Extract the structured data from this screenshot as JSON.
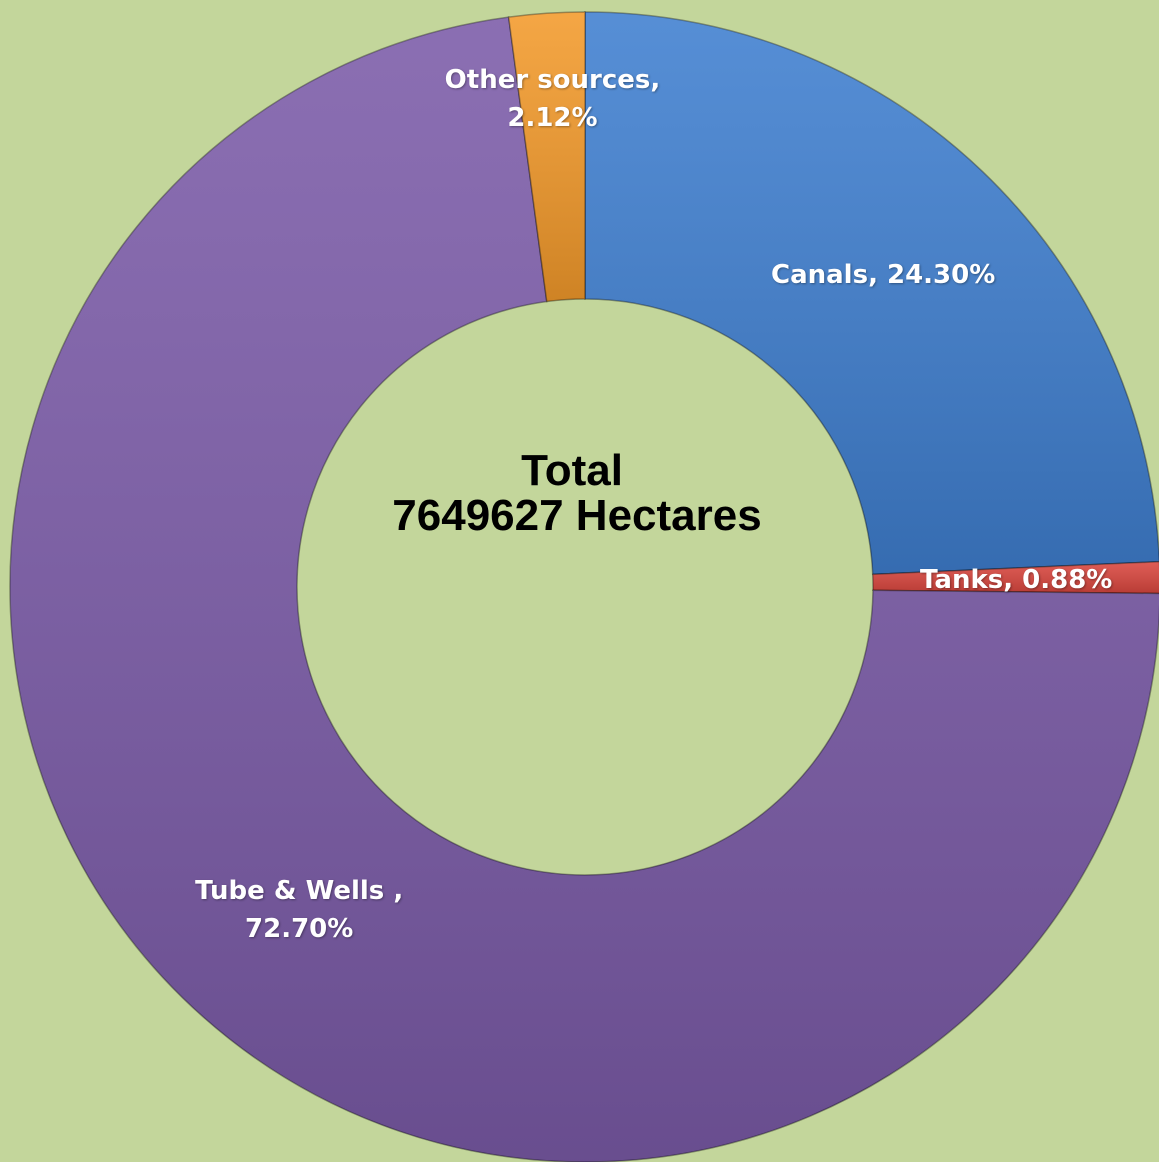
{
  "chart_data": {
    "type": "donut",
    "categories": [
      "Canals",
      "Tanks",
      "Tube & Wells",
      "Other sources"
    ],
    "values": [
      24.3,
      0.88,
      72.7,
      2.12
    ],
    "value_labels": [
      "Canals, 24.30%",
      "Tanks, 0.88%",
      "Tube & Wells ,\n72.70%",
      "Other sources,\n2.12%"
    ],
    "colors": [
      "#3f7fd0",
      "#d9463e",
      "#7b5ba8",
      "#f39a2b"
    ],
    "annotations": [
      "Total",
      "7649627 Hectares"
    ]
  }
}
